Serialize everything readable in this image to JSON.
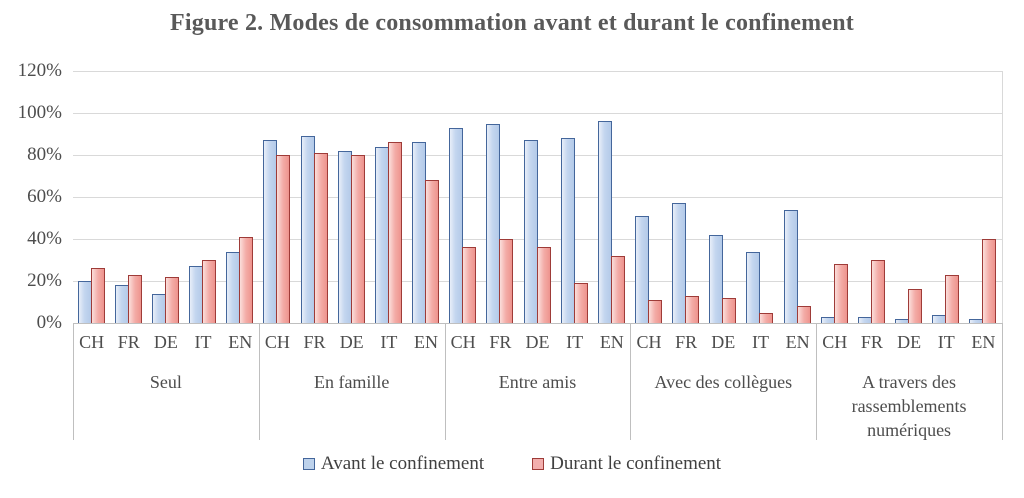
{
  "chart_data": {
    "type": "bar",
    "title": "Figure 2. Modes de consommation avant et durant le confinement",
    "xlabel": "",
    "ylabel": "",
    "ylim": [
      0,
      120
    ],
    "grid": true,
    "legend_position": "bottom",
    "y_ticks": [
      "120%",
      "100%",
      "80%",
      "60%",
      "40%",
      "20%",
      "0%"
    ],
    "countries": [
      "CH",
      "FR",
      "DE",
      "IT",
      "EN"
    ],
    "series": [
      {
        "name": "Avant le confinement",
        "fill": "#c4d6ef",
        "border": "#44669b"
      },
      {
        "name": "Durant le confinement",
        "fill": "#f3aca7",
        "border": "#9e3b38"
      }
    ],
    "groups": [
      {
        "label": "Seul",
        "avant": [
          20,
          18,
          14,
          27,
          34
        ],
        "durant": [
          26,
          23,
          22,
          30,
          41
        ]
      },
      {
        "label": "En famille",
        "avant": [
          87,
          89,
          82,
          84,
          86
        ],
        "durant": [
          80,
          81,
          80,
          86,
          68
        ]
      },
      {
        "label": "Entre amis",
        "avant": [
          93,
          95,
          87,
          88,
          96
        ],
        "durant": [
          36,
          40,
          36,
          19,
          32
        ]
      },
      {
        "label": "Avec des collègues",
        "avant": [
          51,
          57,
          42,
          34,
          54
        ],
        "durant": [
          11,
          13,
          12,
          5,
          8
        ]
      },
      {
        "label": "A travers des rassemblements numériques",
        "avant": [
          3,
          3,
          2,
          4,
          2
        ],
        "durant": [
          28,
          30,
          16,
          23,
          40
        ]
      }
    ]
  }
}
